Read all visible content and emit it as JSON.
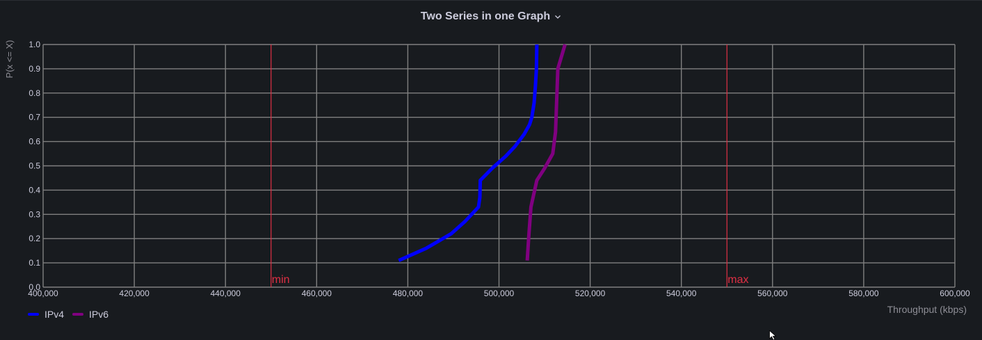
{
  "panel": {
    "title": "Two Series in one Graph",
    "chevron_icon": "chevron-down-icon"
  },
  "colors": {
    "background": "#181b1f",
    "grid": "#808080",
    "tick_text": "#ccccdc",
    "threshold": "#e02f44",
    "ipv4": "#0000ff",
    "ipv6": "#800080"
  },
  "chart_data": {
    "type": "line",
    "title": "Two Series in one Graph",
    "xlabel": "Throughput (kbps)",
    "ylabel": "P(x <= X)",
    "xlim": [
      400000,
      600000
    ],
    "ylim": [
      0,
      1
    ],
    "grid": true,
    "legend_position": "bottom-left",
    "x_ticks": [
      400000,
      420000,
      440000,
      460000,
      480000,
      500000,
      520000,
      540000,
      560000,
      580000,
      600000
    ],
    "x_tick_labels": [
      "400,000",
      "420,000",
      "440,000",
      "460,000",
      "480,000",
      "500,000",
      "520,000",
      "540,000",
      "560,000",
      "580,000",
      "600,000"
    ],
    "y_ticks": [
      0,
      0.1,
      0.2,
      0.3,
      0.4,
      0.5,
      0.6,
      0.7,
      0.8,
      0.9,
      1.0
    ],
    "y_tick_labels": [
      "0.0",
      "0.1",
      "0.2",
      "0.3",
      "0.4",
      "0.5",
      "0.6",
      "0.7",
      "0.8",
      "0.9",
      "1.0"
    ],
    "thresholds": [
      {
        "label": "min",
        "x": 450000
      },
      {
        "label": "max",
        "x": 550000
      }
    ],
    "series": [
      {
        "name": "IPv4",
        "color": "#0000ff",
        "points": [
          [
            478000,
            0.11
          ],
          [
            484000,
            0.16
          ],
          [
            489500,
            0.22
          ],
          [
            492500,
            0.27
          ],
          [
            495500,
            0.33
          ],
          [
            495800,
            0.37
          ],
          [
            495900,
            0.44
          ],
          [
            498500,
            0.49
          ],
          [
            501500,
            0.54
          ],
          [
            503500,
            0.58
          ],
          [
            505500,
            0.63
          ],
          [
            506700,
            0.67
          ],
          [
            507200,
            0.7
          ],
          [
            507700,
            0.76
          ],
          [
            508000,
            0.83
          ],
          [
            508200,
            0.9
          ],
          [
            508300,
            1.0
          ]
        ]
      },
      {
        "name": "IPv6",
        "color": "#800080",
        "points": [
          [
            506200,
            0.11
          ],
          [
            506500,
            0.2
          ],
          [
            507000,
            0.33
          ],
          [
            508300,
            0.44
          ],
          [
            510000,
            0.49
          ],
          [
            511800,
            0.55
          ],
          [
            512400,
            0.64
          ],
          [
            512700,
            0.79
          ],
          [
            512900,
            0.9
          ],
          [
            514500,
            1.0
          ]
        ]
      }
    ]
  }
}
